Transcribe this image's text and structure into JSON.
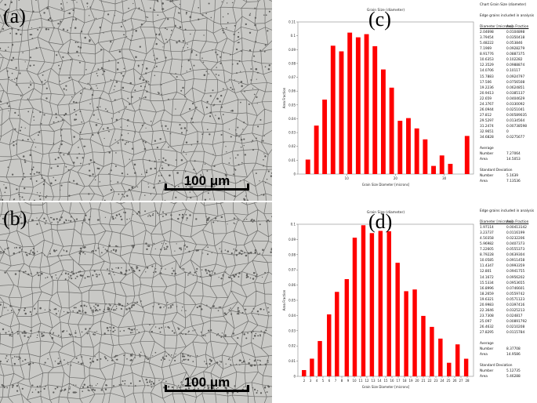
{
  "panels": {
    "a": {
      "label": "(a)",
      "scalebar": "100 μm"
    },
    "b": {
      "label": "(b)",
      "scalebar": "100 μm"
    },
    "c": {
      "label": "(c)"
    },
    "d": {
      "label": "(d)"
    }
  },
  "colors": {
    "bar": "#ff0000",
    "micrograph_bg": "#c9c9c6",
    "grain_boundary": "#6d6d6b"
  },
  "chart_data": [
    {
      "type": "bar",
      "panel": "c",
      "title": "Grain Size (diameter)",
      "xlabel": "Grain Size Diameter [microns]",
      "ylabel": "Area Fraction",
      "ylim": [
        0,
        0.11
      ],
      "yticks": [
        "0",
        "0.01",
        "0.02",
        "0.03",
        "0.04",
        "0.05",
        "0.06",
        "0.07",
        "0.08",
        "0.09",
        "0.1",
        "0.11"
      ],
      "xtick_labels": [
        {
          "label": "10",
          "at": 10
        },
        {
          "label": "20",
          "at": 20
        },
        {
          "label": "30",
          "at": 30
        }
      ],
      "xlim": [
        0,
        36
      ],
      "x": [
        2.04698,
        3.79454,
        5.48222,
        7.1969,
        8.91776,
        10.6353,
        12.3529,
        14.0706,
        15.7883,
        17.506,
        19.2236,
        20.9413,
        22.659,
        24.3767,
        26.0944,
        27.812,
        29.5297,
        31.2474,
        32.9651,
        34.6828
      ],
      "values": [
        0.0104898,
        0.0350418,
        0.053846,
        0.0928279,
        0.0887375,
        0.102282,
        0.0988874,
        0.10117,
        0.0924797,
        0.0756508,
        0.0624851,
        0.0385137,
        0.0404629,
        0.0330092,
        0.0251041,
        0.00589035,
        0.0134564,
        0.00738598,
        0,
        0.0275677
      ]
    },
    {
      "type": "bar",
      "panel": "d",
      "title": "Grain Size (diameter)",
      "xlabel": "Grain Size Diameter [microns]",
      "ylabel": "Area Fraction",
      "ylim": [
        0,
        0.1
      ],
      "yticks": [
        "0",
        "0.01",
        "0.02",
        "0.03",
        "0.04",
        "0.05",
        "0.06",
        "0.07",
        "0.08",
        "0.09",
        "0.1"
      ],
      "xtick_labels": [
        "2",
        "3",
        "4",
        "5",
        "6",
        "7",
        "8",
        "9",
        "10",
        "11",
        "12",
        "13",
        "14",
        "15",
        "16",
        "17",
        "18",
        "19",
        "20",
        "21",
        "22",
        "23",
        "24",
        "25",
        "26",
        "27",
        "28"
      ],
      "xlim": [
        1,
        29
      ],
      "x": [
        1.97114,
        3.23737,
        4.50358,
        5.96982,
        7.22605,
        8.79228,
        10.0585,
        11.4347,
        12.801,
        14.1672,
        15.5334,
        16.8996,
        18.2659,
        19.6321,
        20.9983,
        22.3646,
        23.7308,
        25.097,
        26.4632,
        27.8295
      ],
      "values": [
        0.00413142,
        0.0116199,
        0.0232206,
        0.0407373,
        0.0555373,
        0.0639304,
        0.0911458,
        0.0993359,
        0.0941755,
        0.0956202,
        0.0953655,
        0.0746601,
        0.0559742,
        0.0571123,
        0.0397416,
        0.0325213,
        0.024817,
        0.00891792,
        0.0210208,
        0.0115784
      ]
    }
  ],
  "tables": {
    "c": {
      "header_lines": [
        "Chart  Grain Size (diameter)",
        "Edge grains included in analysis"
      ],
      "col_headers": [
        "Diameter [microns]",
        "Area Fraction"
      ],
      "rows": [
        [
          "2.04698",
          "0.0104898"
        ],
        [
          "3.79454",
          "0.0350418"
        ],
        [
          "5.48222",
          "0.053846"
        ],
        [
          "7.1969",
          "0.0928279"
        ],
        [
          "8.91776",
          "0.0887375"
        ],
        [
          "10.6353",
          "0.102282"
        ],
        [
          "12.3529",
          "0.0988874"
        ],
        [
          "14.0706",
          "0.10117"
        ],
        [
          "15.7883",
          "0.0924797"
        ],
        [
          "17.506",
          "0.0756508"
        ],
        [
          "19.2236",
          "0.0624851"
        ],
        [
          "20.9413",
          "0.0385137"
        ],
        [
          "22.659",
          "0.0404629"
        ],
        [
          "24.3767",
          "0.0330092"
        ],
        [
          "26.0944",
          "0.0251041"
        ],
        [
          "27.812",
          "0.00589035"
        ],
        [
          "29.5297",
          "0.0134564"
        ],
        [
          "31.2474",
          "0.00738598"
        ],
        [
          "32.9651",
          "0"
        ],
        [
          "34.6828",
          "0.0275677"
        ]
      ],
      "average_label": "Average",
      "average": [
        [
          "Number",
          "7.27064"
        ],
        [
          "Area",
          "14.5053"
        ]
      ],
      "stddev_label": "Standard Deviation",
      "stddev": [
        [
          "Number",
          "5.1639"
        ],
        [
          "Area",
          "7.13536"
        ]
      ]
    },
    "d": {
      "header_lines": [
        "Edge grains included in analysis"
      ],
      "col_headers": [
        "Diameter [microns]",
        "Area Fraction"
      ],
      "rows": [
        [
          "1.97114",
          "0.00413142"
        ],
        [
          "3.23737",
          "0.0116199"
        ],
        [
          "4.50358",
          "0.0232206"
        ],
        [
          "5.96982",
          "0.0407373"
        ],
        [
          "7.22605",
          "0.0555373"
        ],
        [
          "8.79228",
          "0.0639304"
        ],
        [
          "10.0585",
          "0.0911458"
        ],
        [
          "11.4347",
          "0.0993359"
        ],
        [
          "12.801",
          "0.0941755"
        ],
        [
          "14.1672",
          "0.0956202"
        ],
        [
          "15.5334",
          "0.0953655"
        ],
        [
          "16.8996",
          "0.0746601"
        ],
        [
          "18.2659",
          "0.0559742"
        ],
        [
          "19.6321",
          "0.0571123"
        ],
        [
          "20.9983",
          "0.0397416"
        ],
        [
          "22.3646",
          "0.0325213"
        ],
        [
          "23.7308",
          "0.024817"
        ],
        [
          "25.097",
          "0.00891792"
        ],
        [
          "26.4632",
          "0.0210208"
        ],
        [
          "27.8295",
          "0.0115784"
        ]
      ],
      "average_label": "Average",
      "average": [
        [
          "Number",
          "8.37708"
        ],
        [
          "Area",
          "14.9586"
        ]
      ],
      "stddev_label": "Standard Deviation",
      "stddev": [
        [
          "Number",
          "5.12735"
        ],
        [
          "Area",
          "5.46288"
        ]
      ]
    }
  }
}
